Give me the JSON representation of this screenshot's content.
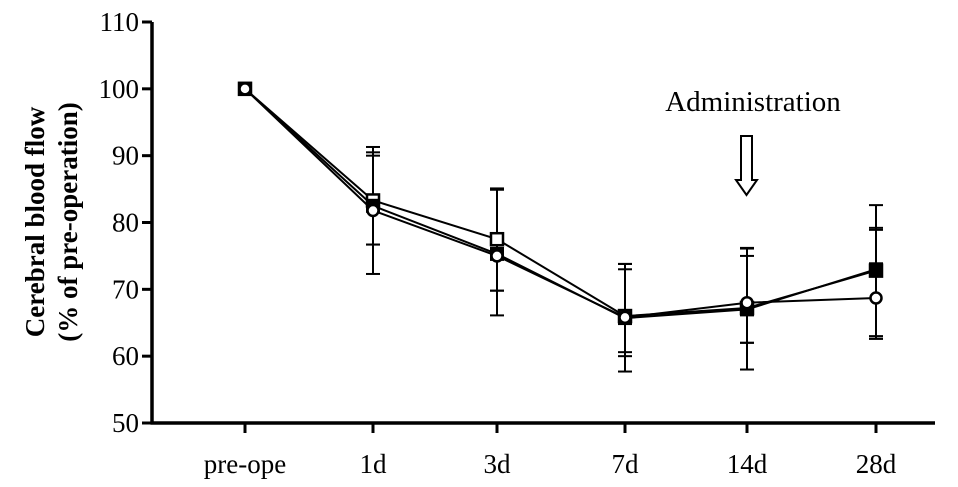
{
  "chart_data": {
    "type": "line",
    "categories": [
      "pre-ope",
      "1d",
      "3d",
      "7d",
      "14d",
      "28d"
    ],
    "ylabel_lines": [
      "Cerebral blood flow",
      "(% of pre-operation)"
    ],
    "xlabel": "",
    "ylim": [
      50,
      110
    ],
    "yticks": [
      50,
      60,
      70,
      80,
      90,
      100,
      110
    ],
    "grid": false,
    "annotation": {
      "text": "Administration",
      "at_category": "14d",
      "marker": "hollow-down-arrow"
    },
    "series": [
      {
        "marker": "open-square",
        "values": [
          100,
          83.3,
          77.5,
          66.0,
          67.2,
          72.8
        ],
        "err_upper": [
          0,
          8.0,
          7.5,
          7.8,
          8.9,
          9.8
        ],
        "err_lower": [
          0,
          6.6,
          7.7,
          6.0,
          5.2,
          9.8
        ]
      },
      {
        "marker": "filled-square",
        "values": [
          100,
          82.5,
          75.3,
          65.7,
          67.0,
          73.0
        ],
        "err_upper": [
          0,
          8.0,
          9.8,
          8.1,
          9.2,
          5.9
        ],
        "err_lower": [
          0,
          10.2,
          9.2,
          8.0,
          9.0,
          10.4
        ]
      },
      {
        "marker": "open-circle",
        "values": [
          100,
          81.8,
          75.0,
          65.8,
          68.0,
          68.7
        ],
        "err_upper": [
          0,
          8.2,
          9.9,
          7.2,
          7.0,
          10.5
        ],
        "err_lower": [
          0,
          5.1,
          5.2,
          5.2,
          6.0,
          6.1
        ]
      }
    ]
  }
}
